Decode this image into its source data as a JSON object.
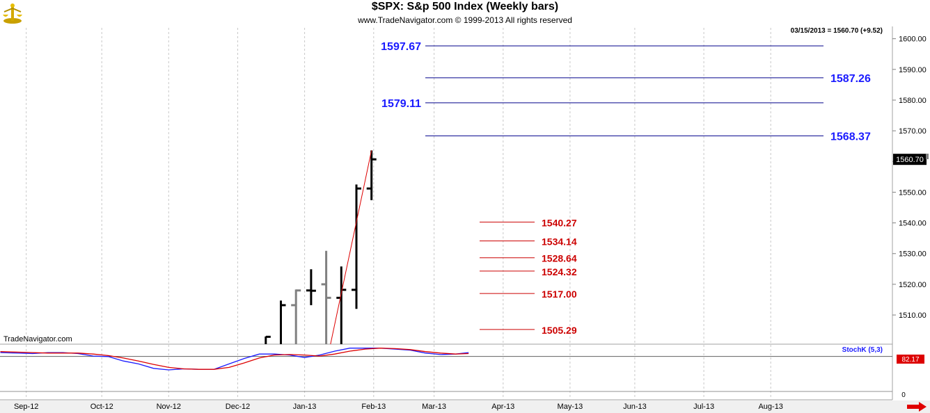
{
  "header": {
    "title": "$SPX:  S&p 500 Index  (Weekly bars)",
    "copyright": "www.TradeNavigator.com © 1999-2013 All rights reserved"
  },
  "price_panel": {
    "last_bar_info": "03/15/2013 = 1560.70 (+9.52)",
    "current_price_label": "1560.70",
    "watermark": "TradeNavigator.com"
  },
  "indicator_panel": {
    "label": "StochK (5,3)",
    "value_label": "82.17",
    "y_tick": "0"
  },
  "colors": {
    "up_bar": "#000000",
    "gray_bar": "#808080",
    "blue_levels": "#00008b",
    "red_levels": "#cc0000",
    "stoch_k": "#1a1aff",
    "stoch_d": "#dd0000",
    "grid": "#c8c8c8"
  },
  "chart_data": [
    {
      "type": "ohlc",
      "title": "$SPX:  S&p 500 Index  (Weekly bars)",
      "y_axis": {
        "ylim": [
          1500.5,
          1604
        ],
        "ticks": [
          1510,
          1520,
          1530,
          1540,
          1550,
          1560,
          1570,
          1580,
          1590,
          1600
        ],
        "tick_labels": [
          "1510.00",
          "1520.00",
          "1530.00",
          "1540.00",
          "1550.00",
          "",
          "1570.00",
          "1580.00",
          "1590.00",
          "1600.00"
        ],
        "side": "right"
      },
      "x_axis": {
        "labels": [
          "Sep-12",
          "Oct-12",
          "Nov-12",
          "Dec-12",
          "Jan-13",
          "Feb-13",
          "Mar-13",
          "Apr-13",
          "May-13",
          "Jun-13",
          "Jul-13",
          "Aug-13"
        ],
        "label_day": [
          -3,
          32,
          63,
          95,
          126,
          158,
          186,
          218,
          249,
          279,
          311,
          342
        ]
      },
      "bars": [
        {
          "day": 108,
          "open": 1496.2,
          "high": 1503,
          "low": 1494,
          "close": 1502.9,
          "color": "black"
        },
        {
          "day": 115,
          "open": 1498,
          "high": 1514.7,
          "low": 1496,
          "close": 1513.2,
          "color": "black"
        },
        {
          "day": 122,
          "open": 1513.2,
          "high": 1518.3,
          "low": 1495,
          "close": 1518,
          "color": "gray"
        },
        {
          "day": 129,
          "open": 1518,
          "high": 1524.9,
          "low": 1513.2,
          "close": 1517.9,
          "color": "black"
        },
        {
          "day": 136,
          "open": 1520,
          "high": 1530.9,
          "low": 1497,
          "close": 1515.6,
          "color": "gray"
        },
        {
          "day": 143,
          "open": 1515.6,
          "high": 1525.8,
          "low": 1497,
          "close": 1518.2,
          "color": "black"
        },
        {
          "day": 150,
          "open": 1518.2,
          "high": 1552.5,
          "low": 1512,
          "close": 1551.2,
          "color": "black"
        },
        {
          "day": 157,
          "open": 1551.2,
          "high": 1563.6,
          "low": 1547.4,
          "close": 1560.7,
          "color": "black"
        }
      ],
      "trend_line": {
        "from": {
          "day": 138,
          "price": 1500.5
        },
        "to": {
          "day": 157,
          "price": 1563.6
        }
      },
      "levels_blue": [
        {
          "value": 1597.67,
          "label": "1597.67"
        },
        {
          "value": 1587.26,
          "label": "1587.26"
        },
        {
          "value": 1579.11,
          "label": "1579.11"
        },
        {
          "value": 1568.37,
          "label": "1568.37"
        }
      ],
      "levels_red": [
        {
          "value": 1540.27,
          "label": "1540.27"
        },
        {
          "value": 1534.14,
          "label": "1534.14"
        },
        {
          "value": 1528.64,
          "label": "1528.64"
        },
        {
          "value": 1524.32,
          "label": "1524.32"
        },
        {
          "value": 1517.0,
          "label": "1517.00"
        },
        {
          "value": 1505.29,
          "label": "1505.29"
        }
      ],
      "current_price": 1560.7
    },
    {
      "type": "line",
      "title": "StochK (5,3)",
      "ylim": [
        0,
        100
      ],
      "reference_level": 82.17,
      "series": [
        {
          "name": "StochK (5,3)",
          "color": "#1a1aff",
          "points": [
            [
              -15,
              90
            ],
            [
              0,
              88
            ],
            [
              7,
              90
            ],
            [
              14,
              90
            ],
            [
              21,
              88
            ],
            [
              28,
              83
            ],
            [
              35,
              82
            ],
            [
              42,
              73
            ],
            [
              49,
              67
            ],
            [
              56,
              58
            ],
            [
              63,
              55
            ],
            [
              70,
              57
            ],
            [
              77,
              56
            ],
            [
              84,
              56
            ],
            [
              91,
              67
            ],
            [
              98,
              78
            ],
            [
              105,
              87
            ],
            [
              112,
              87
            ],
            [
              119,
              85
            ],
            [
              126,
              80
            ],
            [
              133,
              85
            ],
            [
              140,
              93
            ],
            [
              147,
              99
            ],
            [
              154,
              99
            ],
            [
              161,
              99
            ],
            [
              168,
              97
            ],
            [
              175,
              95
            ],
            [
              182,
              89
            ],
            [
              189,
              86
            ],
            [
              196,
              87
            ],
            [
              202,
              90
            ]
          ]
        },
        {
          "name": "",
          "color": "#dd0000",
          "points": [
            [
              -15,
              92
            ],
            [
              0,
              90
            ],
            [
              7,
              89
            ],
            [
              14,
              89
            ],
            [
              21,
              89
            ],
            [
              28,
              87
            ],
            [
              35,
              84
            ],
            [
              42,
              79
            ],
            [
              49,
              73
            ],
            [
              56,
              66
            ],
            [
              63,
              60
            ],
            [
              70,
              57
            ],
            [
              77,
              56
            ],
            [
              84,
              56
            ],
            [
              91,
              60
            ],
            [
              98,
              69
            ],
            [
              105,
              79
            ],
            [
              112,
              85
            ],
            [
              119,
              86
            ],
            [
              126,
              85
            ],
            [
              133,
              83
            ],
            [
              140,
              87
            ],
            [
              147,
              93
            ],
            [
              154,
              97
            ],
            [
              161,
              99
            ],
            [
              168,
              98
            ],
            [
              175,
              96
            ],
            [
              182,
              92
            ],
            [
              189,
              89
            ],
            [
              196,
              87
            ],
            [
              202,
              88
            ]
          ]
        }
      ]
    }
  ]
}
